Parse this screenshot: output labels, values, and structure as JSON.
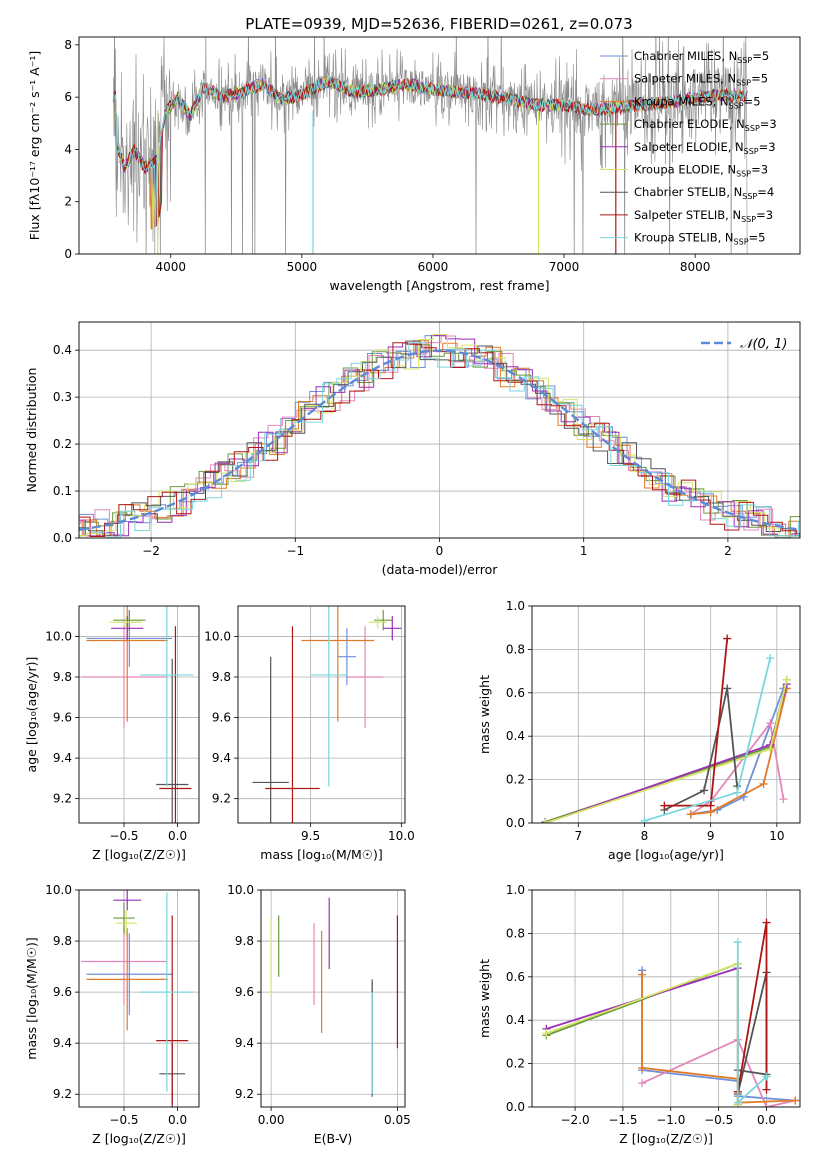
{
  "colors": {
    "Chabrier MILES": "#6f8fd8",
    "Salpeter MILES": "#e487b8",
    "Kroupa MILES": "#e07b2a",
    "Chabrier ELODIE": "#6a9a3c",
    "Salpeter ELODIE": "#9b2fb8",
    "Kroupa ELODIE": "#d6e36a",
    "Chabrier STELIB": "#555555",
    "Salpeter STELIB": "#b01515",
    "Kroupa STELIB": "#7ad6dc",
    "data": "#888888",
    "gauss": "#5b8bd8"
  },
  "chart_data": [
    {
      "id": "spectrum",
      "type": "line",
      "title": "PLATE=0939, MJD=52636, FIBERID=0261, z=0.073",
      "xlabel": "wavelength [Angstrom, rest frame]",
      "ylabel": "Flux [fλ10⁻¹⁷ erg cm⁻² s⁻¹ A⁻¹]",
      "xlim": [
        3300,
        8800
      ],
      "ylim": [
        0,
        8.3
      ],
      "xticks": [
        4000,
        5000,
        6000,
        7000,
        8000
      ],
      "yticks": [
        0,
        2,
        4,
        6,
        8
      ],
      "legend_location": "upper right",
      "legend": [
        {
          "name": "Chabrier MILES",
          "nssp": "5"
        },
        {
          "name": "Salpeter MILES",
          "nssp": "5"
        },
        {
          "name": "Kroupa MILES",
          "nssp": "5"
        },
        {
          "name": "Chabrier ELODIE",
          "nssp": "3"
        },
        {
          "name": "Salpeter ELODIE",
          "nssp": "3"
        },
        {
          "name": "Kroupa ELODIE",
          "nssp": "3"
        },
        {
          "name": "Chabrier STELIB",
          "nssp": "4"
        },
        {
          "name": "Salpeter STELIB",
          "nssp": "3"
        },
        {
          "name": "Kroupa STELIB",
          "nssp": "5"
        }
      ],
      "continuum": [
        [
          3580,
          4.2
        ],
        [
          3650,
          3.3
        ],
        [
          3720,
          4.0
        ],
        [
          3800,
          3.3
        ],
        [
          3900,
          3.6
        ],
        [
          3960,
          5.4
        ],
        [
          4050,
          6.0
        ],
        [
          4150,
          5.3
        ],
        [
          4250,
          6.4
        ],
        [
          4400,
          6.0
        ],
        [
          4550,
          6.2
        ],
        [
          4700,
          6.5
        ],
        [
          4850,
          5.9
        ],
        [
          5000,
          6.1
        ],
        [
          5200,
          6.6
        ],
        [
          5400,
          6.2
        ],
        [
          5600,
          6.3
        ],
        [
          5800,
          6.5
        ],
        [
          6000,
          6.3
        ],
        [
          6200,
          6.2
        ],
        [
          6400,
          6.1
        ],
        [
          6600,
          5.9
        ],
        [
          6800,
          5.7
        ],
        [
          7000,
          5.7
        ],
        [
          7200,
          5.5
        ],
        [
          7400,
          5.6
        ],
        [
          7600,
          5.7
        ],
        [
          7800,
          5.8
        ],
        [
          8000,
          6.0
        ],
        [
          8200,
          6.1
        ],
        [
          8400,
          6.0
        ]
      ]
    },
    {
      "id": "residuals",
      "type": "histogram",
      "xlabel": "(data-model)/error",
      "ylabel": "Normed distribution",
      "xlim": [
        -2.5,
        2.5
      ],
      "ylim": [
        0,
        0.46
      ],
      "xticks": [
        -2,
        -1,
        0,
        1,
        2
      ],
      "yticks": [
        0.0,
        0.1,
        0.2,
        0.3,
        0.4
      ],
      "grid": true,
      "legend_location": "upper right",
      "gauss_label": "𝒩(0, 1)",
      "bin_width": 0.1
    },
    {
      "id": "age_vs_Z",
      "type": "errorbar",
      "xlabel": "Z [log₁₀(Z/Z☉)]",
      "ylabel": "age  [log₁₀(age/yr)]",
      "xlim": [
        -0.92,
        0.2
      ],
      "ylim": [
        9.08,
        10.15
      ],
      "xticks": [
        -0.5,
        0.0
      ],
      "yticks": [
        9.2,
        9.4,
        9.6,
        9.8,
        10.0
      ],
      "grid": true,
      "points": [
        {
          "s": "Chabrier MILES",
          "x": -0.45,
          "xe": 0.4,
          "y": 9.99,
          "ye": 0.14
        },
        {
          "s": "Salpeter MILES",
          "x": -0.5,
          "xe": 0.4,
          "y": 9.8,
          "ye": 0.25
        },
        {
          "s": "Kroupa MILES",
          "x": -0.47,
          "xe": 0.38,
          "y": 9.98,
          "ye": 0.4
        },
        {
          "s": "Chabrier ELODIE",
          "x": -0.45,
          "xe": 0.15,
          "y": 10.08,
          "ye": 0.05
        },
        {
          "s": "Salpeter ELODIE",
          "x": -0.47,
          "xe": 0.15,
          "y": 10.04,
          "ye": 0.06
        },
        {
          "s": "Kroupa ELODIE",
          "x": -0.48,
          "xe": 0.15,
          "y": 10.07,
          "ye": 0.03
        },
        {
          "s": "Chabrier STELIB",
          "x": -0.05,
          "xe": 0.15,
          "y": 9.27,
          "ye": 0.62
        },
        {
          "s": "Salpeter STELIB",
          "x": -0.02,
          "xe": 0.15,
          "y": 9.25,
          "ye": 0.8
        },
        {
          "s": "Kroupa STELIB",
          "x": -0.1,
          "xe": 0.25,
          "y": 9.81,
          "ye": 0.55
        }
      ]
    },
    {
      "id": "age_vs_mass",
      "type": "errorbar",
      "xlabel": "mass [log₁₀(M/M☉)]",
      "xlim": [
        9.1,
        10.02
      ],
      "ylim": [
        9.08,
        10.15
      ],
      "xticks": [
        9.5,
        10.0
      ],
      "yticks": [
        9.2,
        9.4,
        9.6,
        9.8,
        10.0
      ],
      "grid": true,
      "points": [
        {
          "s": "Chabrier MILES",
          "x": 9.7,
          "xe": 0.05,
          "y": 9.9,
          "ye": 0.14
        },
        {
          "s": "Salpeter MILES",
          "x": 9.8,
          "xe": 0.1,
          "y": 9.8,
          "ye": 0.25
        },
        {
          "s": "Kroupa MILES",
          "x": 9.65,
          "xe": 0.2,
          "y": 9.98,
          "ye": 0.4
        },
        {
          "s": "Chabrier ELODIE",
          "x": 9.9,
          "xe": 0.05,
          "y": 10.08,
          "ye": 0.05
        },
        {
          "s": "Salpeter ELODIE",
          "x": 9.95,
          "xe": 0.05,
          "y": 10.04,
          "ye": 0.06
        },
        {
          "s": "Kroupa ELODIE",
          "x": 9.87,
          "xe": 0.05,
          "y": 10.07,
          "ye": 0.03
        },
        {
          "s": "Chabrier STELIB",
          "x": 9.28,
          "xe": 0.1,
          "y": 9.28,
          "ye": 0.62
        },
        {
          "s": "Salpeter STELIB",
          "x": 9.4,
          "xe": 0.15,
          "y": 9.25,
          "ye": 0.8
        },
        {
          "s": "Kroupa STELIB",
          "x": 9.6,
          "xe": 0.1,
          "y": 9.81,
          "ye": 0.55
        }
      ]
    },
    {
      "id": "weight_vs_age",
      "type": "line",
      "xlabel": "age  [log₁₀(age/yr)]",
      "ylabel": "mass weight",
      "xlim": [
        6.3,
        10.35
      ],
      "ylim": [
        0,
        1.0
      ],
      "xticks": [
        7,
        8,
        9,
        10
      ],
      "yticks": [
        0.0,
        0.2,
        0.4,
        0.6,
        0.8,
        1.0
      ],
      "grid": true,
      "series": [
        {
          "name": "Chabrier MILES",
          "x": [
            8.7,
            9.1,
            9.5,
            10.1
          ],
          "y": [
            0.04,
            0.06,
            0.12,
            0.62
          ]
        },
        {
          "name": "Salpeter MILES",
          "x": [
            8.7,
            9.0,
            9.9,
            10.1
          ],
          "y": [
            0.04,
            0.1,
            0.46,
            0.11
          ]
        },
        {
          "name": "Kroupa MILES",
          "x": [
            8.7,
            9.0,
            9.8,
            10.15
          ],
          "y": [
            0.04,
            0.05,
            0.18,
            0.62
          ]
        },
        {
          "name": "Chabrier ELODIE",
          "x": [
            6.5,
            9.9,
            10.15
          ],
          "y": [
            0.005,
            0.35,
            0.66
          ]
        },
        {
          "name": "Salpeter ELODIE",
          "x": [
            6.5,
            9.9,
            10.15
          ],
          "y": [
            0.0,
            0.36,
            0.64
          ]
        },
        {
          "name": "Kroupa ELODIE",
          "x": [
            6.5,
            9.9,
            10.15
          ],
          "y": [
            0.0,
            0.34,
            0.66
          ]
        },
        {
          "name": "Chabrier STELIB",
          "x": [
            8.3,
            8.9,
            9.25,
            9.4
          ],
          "y": [
            0.06,
            0.15,
            0.62,
            0.17
          ]
        },
        {
          "name": "Salpeter STELIB",
          "x": [
            8.3,
            9.0,
            9.25
          ],
          "y": [
            0.08,
            0.08,
            0.85
          ]
        },
        {
          "name": "Kroupa STELIB",
          "x": [
            8.0,
            9.4,
            9.9
          ],
          "y": [
            0.01,
            0.14,
            0.76
          ]
        }
      ]
    },
    {
      "id": "mass_vs_Z",
      "type": "errorbar",
      "xlabel": "Z [log₁₀(Z/Z☉)]",
      "ylabel": "mass [log₁₀(M/M☉)]",
      "xlim": [
        -0.92,
        0.2
      ],
      "ylim": [
        9.15,
        10.0
      ],
      "xticks": [
        -0.5,
        0.0
      ],
      "yticks": [
        9.2,
        9.4,
        9.6,
        9.8,
        10.0
      ],
      "grid": true,
      "points": [
        {
          "s": "Chabrier MILES",
          "x": -0.45,
          "xe": 0.4,
          "y": 9.67,
          "ye": 0.16
        },
        {
          "s": "Salpeter MILES",
          "x": -0.5,
          "xe": 0.4,
          "y": 9.72,
          "ye": 0.17
        },
        {
          "s": "Kroupa MILES",
          "x": -0.47,
          "xe": 0.38,
          "y": 9.65,
          "ye": 0.2
        },
        {
          "s": "Chabrier ELODIE",
          "x": -0.5,
          "xe": 0.1,
          "y": 9.89,
          "ye": 0.06
        },
        {
          "s": "Salpeter ELODIE",
          "x": -0.47,
          "xe": 0.13,
          "y": 9.96,
          "ye": 0.04
        },
        {
          "s": "Kroupa ELODIE",
          "x": -0.48,
          "xe": 0.1,
          "y": 9.87,
          "ye": 0.05
        },
        {
          "s": "Chabrier STELIB",
          "x": -0.05,
          "xe": 0.12,
          "y": 9.28,
          "ye": 0.12
        },
        {
          "s": "Salpeter STELIB",
          "x": -0.05,
          "xe": 0.15,
          "y": 9.41,
          "ye": 0.49
        },
        {
          "s": "Kroupa STELIB",
          "x": -0.1,
          "xe": 0.25,
          "y": 9.6,
          "ye": 0.39
        }
      ]
    },
    {
      "id": "mass_vs_ebv",
      "type": "errorbar",
      "xlabel": "E(B-V)",
      "xlim": [
        -0.004,
        0.053
      ],
      "ylim": [
        9.15,
        10.0
      ],
      "xticks": [
        0.0,
        0.05
      ],
      "yticks": [
        9.2,
        9.4,
        9.6,
        9.8,
        10.0
      ],
      "grid": true,
      "points": [
        {
          "s": "Chabrier MILES",
          "x": 0.04,
          "y": 9.42,
          "ye": 0.22
        },
        {
          "s": "Salpeter MILES",
          "x": 0.017,
          "y": 9.71,
          "ye": 0.16
        },
        {
          "s": "Kroupa MILES",
          "x": 0.02,
          "y": 9.64,
          "ye": 0.2
        },
        {
          "s": "Chabrier ELODIE",
          "x": 0.003,
          "y": 9.78,
          "ye": 0.12
        },
        {
          "s": "Salpeter ELODIE",
          "x": 0.023,
          "y": 9.83,
          "ye": 0.14
        },
        {
          "s": "Kroupa ELODIE",
          "x": 0.0,
          "y": 9.74,
          "ye": 0.15
        },
        {
          "s": "Chabrier STELIB",
          "x": 0.04,
          "y": 9.42,
          "ye": 0.23
        },
        {
          "s": "Salpeter STELIB",
          "x": 0.05,
          "y": 9.64,
          "ye": 0.26
        },
        {
          "s": "Kroupa STELIB",
          "x": 0.04,
          "y": 9.4,
          "ye": 0.2
        }
      ]
    },
    {
      "id": "weight_vs_Z",
      "type": "line",
      "xlabel": "Z [log₁₀(Z/Z☉)]",
      "ylabel": "mass weight",
      "xlim": [
        -2.45,
        0.35
      ],
      "ylim": [
        0,
        1.0
      ],
      "xticks": [
        -2.0,
        -1.5,
        -1.0,
        -0.5,
        0.0
      ],
      "yticks": [
        0.0,
        0.2,
        0.4,
        0.6,
        0.8,
        1.0
      ],
      "grid": true,
      "series": [
        {
          "name": "Chabrier MILES",
          "x": [
            -1.3,
            -1.3,
            -0.3,
            -0.3,
            0.3
          ],
          "y": [
            0.63,
            0.17,
            0.12,
            0.05,
            0.03
          ]
        },
        {
          "name": "Salpeter MILES",
          "x": [
            -1.3,
            -0.3,
            0.0,
            0.3
          ],
          "y": [
            0.11,
            0.31,
            0.0,
            0.03
          ]
        },
        {
          "name": "Kroupa MILES",
          "x": [
            -1.3,
            -1.3,
            -0.3,
            -0.3,
            0.3
          ],
          "y": [
            0.61,
            0.18,
            0.13,
            0.02,
            0.03
          ]
        },
        {
          "name": "Chabrier ELODIE",
          "x": [
            -2.3,
            -0.3,
            -0.3
          ],
          "y": [
            0.33,
            0.66,
            0.01
          ]
        },
        {
          "name": "Salpeter ELODIE",
          "x": [
            -2.3,
            -0.3,
            -0.3
          ],
          "y": [
            0.36,
            0.64,
            0.01
          ]
        },
        {
          "name": "Kroupa ELODIE",
          "x": [
            -2.3,
            -0.3,
            -0.3
          ],
          "y": [
            0.34,
            0.66,
            0.01
          ]
        },
        {
          "name": "Chabrier STELIB",
          "x": [
            -0.3,
            0.0,
            0.0,
            -0.3
          ],
          "y": [
            0.06,
            0.62,
            0.15,
            0.17
          ]
        },
        {
          "name": "Salpeter STELIB",
          "x": [
            -0.3,
            0.0,
            0.0
          ],
          "y": [
            0.07,
            0.85,
            0.08
          ]
        },
        {
          "name": "Kroupa STELIB",
          "x": [
            -0.3,
            -0.3,
            0.0
          ],
          "y": [
            0.76,
            0.02,
            0.14
          ]
        }
      ]
    }
  ]
}
